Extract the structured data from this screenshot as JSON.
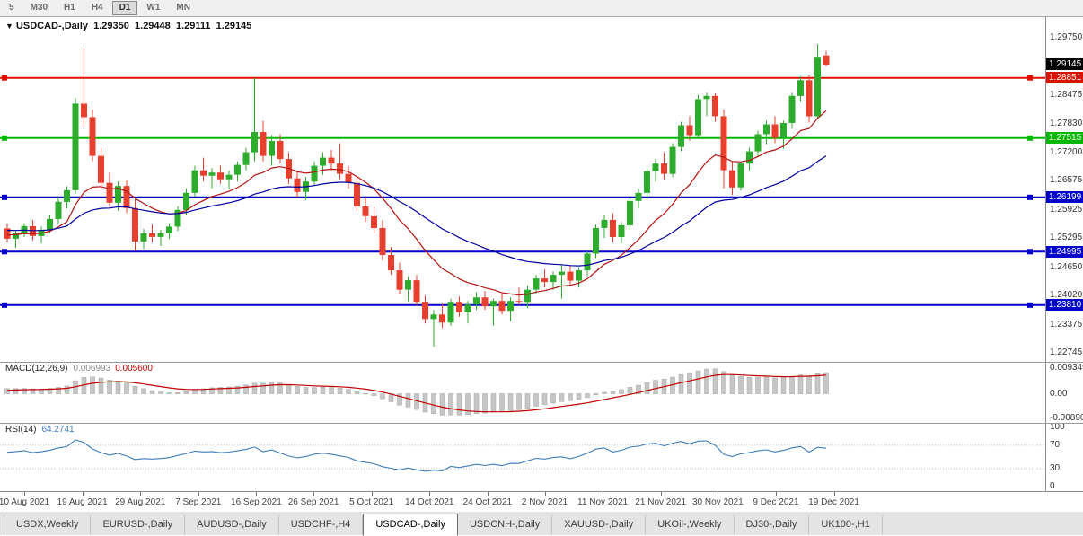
{
  "toolbar": {
    "timeframes": [
      {
        "label": "5",
        "active": false
      },
      {
        "label": "M30",
        "active": false
      },
      {
        "label": "H1",
        "active": false
      },
      {
        "label": "H4",
        "active": false
      },
      {
        "label": "D1",
        "active": true
      },
      {
        "label": "W1",
        "active": false
      },
      {
        "label": "MN",
        "active": false
      }
    ]
  },
  "chart": {
    "title": {
      "collapse_icon": "▼",
      "symbol": "USDCAD-,Daily",
      "open": "1.29350",
      "high": "1.29448",
      "low": "1.29111",
      "close": "1.29145"
    },
    "colors": {
      "bull": "#2cab2c",
      "bear": "#e8402f",
      "ma_fast": "#b31212",
      "ma_slow": "#0000a0",
      "macd_bar": "#c6c6c6",
      "macd_bar_border": "#a2a2a2",
      "macd_signal": "#c00000",
      "rsi_line": "#3f7cba",
      "current_label_bg": "#000000"
    }
  },
  "macd_panel": {
    "label": "MACD(12,26,9)",
    "main_value": "0.006993",
    "signal_value": "0.005600"
  },
  "rsi_panel": {
    "label": "RSI(14)",
    "value": "64.2741"
  },
  "chart_data": {
    "type": "candlestick",
    "symbol": "USDCAD-",
    "timeframe": "Daily",
    "current_price": 1.29145,
    "current_price_label": "1.29145",
    "price_axis_ticks": [
      "1.29750",
      "1.28475",
      "1.27830",
      "1.27200",
      "1.26575",
      "1.25925",
      "1.25295",
      "1.24650",
      "1.24020",
      "1.23375",
      "1.22745"
    ],
    "x_axis_labels": [
      {
        "label": "10 Aug 2021",
        "i": 3
      },
      {
        "label": "19 Aug 2021",
        "i": 9.8
      },
      {
        "label": "29 Aug 2021",
        "i": 16.6
      },
      {
        "label": "7 Sep 2021",
        "i": 23.4
      },
      {
        "label": "16 Sep 2021",
        "i": 30.2
      },
      {
        "label": "26 Sep 2021",
        "i": 36.9
      },
      {
        "label": "5 Oct 2021",
        "i": 43.7
      },
      {
        "label": "14 Oct 2021",
        "i": 50.5
      },
      {
        "label": "24 Oct 2021",
        "i": 57.3
      },
      {
        "label": "2 Nov 2021",
        "i": 64
      },
      {
        "label": "11 Nov 2021",
        "i": 70.8
      },
      {
        "label": "21 Nov 2021",
        "i": 77.6
      },
      {
        "label": "30 Nov 2021",
        "i": 84.3
      },
      {
        "label": "9 Dec 2021",
        "i": 91.1
      },
      {
        "label": "19 Dec 2021",
        "i": 97.9
      }
    ],
    "horizontal_lines": [
      {
        "price": 1.28851,
        "label": "1.28851",
        "color": "#dd1100"
      },
      {
        "price": 1.27515,
        "label": "1.27515",
        "color": "#00b800"
      },
      {
        "price": 1.26199,
        "label": "1.26199",
        "color": "#0202cc"
      },
      {
        "price": 1.24995,
        "label": "1.24995",
        "color": "#0202cc"
      },
      {
        "price": 1.2381,
        "label": "1.23810",
        "color": "#0202cc"
      }
    ],
    "moving_averages": [
      {
        "type": "fast",
        "period": 13
      },
      {
        "type": "slow",
        "period": 34
      }
    ],
    "macd": {
      "fast": 12,
      "slow": 26,
      "signal": 9,
      "axis_ticks": [
        {
          "label": "0.009345",
          "value": 0.009345
        },
        {
          "label": "0.00",
          "value": 0
        },
        {
          "label": "-0.008901",
          "value": -0.008901
        }
      ]
    },
    "rsi": {
      "period": 14,
      "levels": [
        70,
        30
      ],
      "axis_ticks": [
        {
          "label": "100",
          "value": 100
        },
        {
          "label": "70",
          "value": 70
        },
        {
          "label": "30",
          "value": 30
        },
        {
          "label": "0",
          "value": 0
        }
      ]
    },
    "ohlc": [
      [
        1.2551,
        1.2562,
        1.252,
        1.2528
      ],
      [
        1.2528,
        1.2545,
        1.2508,
        1.254
      ],
      [
        1.254,
        1.2562,
        1.2532,
        1.2556
      ],
      [
        1.2556,
        1.257,
        1.2525,
        1.2534
      ],
      [
        1.2534,
        1.2555,
        1.2518,
        1.2548
      ],
      [
        1.2548,
        1.258,
        1.254,
        1.2572
      ],
      [
        1.2572,
        1.262,
        1.256,
        1.261
      ],
      [
        1.261,
        1.2645,
        1.2595,
        1.2636
      ],
      [
        1.2636,
        1.284,
        1.2628,
        1.2828
      ],
      [
        1.2828,
        1.295,
        1.2775,
        1.2798
      ],
      [
        1.2798,
        1.2815,
        1.27,
        1.2712
      ],
      [
        1.2712,
        1.273,
        1.264,
        1.2652
      ],
      [
        1.2652,
        1.2675,
        1.2598,
        1.2608
      ],
      [
        1.2608,
        1.2655,
        1.259,
        1.2645
      ],
      [
        1.2645,
        1.2658,
        1.2585,
        1.2596
      ],
      [
        1.2596,
        1.2618,
        1.25,
        1.2522
      ],
      [
        1.2522,
        1.255,
        1.2505,
        1.254
      ],
      [
        1.254,
        1.256,
        1.252,
        1.2532
      ],
      [
        1.2532,
        1.2548,
        1.2512,
        1.254
      ],
      [
        1.254,
        1.2562,
        1.2528,
        1.2555
      ],
      [
        1.2555,
        1.26,
        1.2545,
        1.2592
      ],
      [
        1.2592,
        1.264,
        1.258,
        1.263
      ],
      [
        1.263,
        1.269,
        1.2622,
        1.268
      ],
      [
        1.268,
        1.2708,
        1.2655,
        1.2668
      ],
      [
        1.2668,
        1.2685,
        1.264,
        1.2675
      ],
      [
        1.2675,
        1.269,
        1.265,
        1.266
      ],
      [
        1.266,
        1.268,
        1.2638,
        1.267
      ],
      [
        1.267,
        1.27,
        1.2655,
        1.2692
      ],
      [
        1.2692,
        1.273,
        1.268,
        1.272
      ],
      [
        1.272,
        1.2885,
        1.27,
        1.2765
      ],
      [
        1.2765,
        1.279,
        1.27,
        1.2712
      ],
      [
        1.2712,
        1.2758,
        1.269,
        1.2745
      ],
      [
        1.2745,
        1.276,
        1.2695,
        1.2705
      ],
      [
        1.2705,
        1.272,
        1.265,
        1.2662
      ],
      [
        1.2662,
        1.268,
        1.262,
        1.2632
      ],
      [
        1.2632,
        1.2665,
        1.2615,
        1.2655
      ],
      [
        1.2655,
        1.27,
        1.2645,
        1.269
      ],
      [
        1.269,
        1.272,
        1.267,
        1.2708
      ],
      [
        1.2708,
        1.2725,
        1.268,
        1.2695
      ],
      [
        1.2695,
        1.274,
        1.266,
        1.2672
      ],
      [
        1.2672,
        1.269,
        1.264,
        1.2652
      ],
      [
        1.2652,
        1.2665,
        1.259,
        1.26
      ],
      [
        1.26,
        1.262,
        1.2565,
        1.2578
      ],
      [
        1.2578,
        1.2598,
        1.254,
        1.2552
      ],
      [
        1.2552,
        1.257,
        1.248,
        1.2492
      ],
      [
        1.2492,
        1.251,
        1.2448,
        1.2458
      ],
      [
        1.2458,
        1.2475,
        1.2405,
        1.2415
      ],
      [
        1.2415,
        1.2445,
        1.239,
        1.2436
      ],
      [
        1.2436,
        1.2448,
        1.238,
        1.2388
      ],
      [
        1.2388,
        1.2402,
        1.234,
        1.235
      ],
      [
        1.235,
        1.237,
        1.2288,
        1.236
      ],
      [
        1.236,
        1.2385,
        1.233,
        1.2342
      ],
      [
        1.2342,
        1.2395,
        1.2335,
        1.2388
      ],
      [
        1.2388,
        1.24,
        1.2355,
        1.2365
      ],
      [
        1.2365,
        1.239,
        1.234,
        1.2382
      ],
      [
        1.2382,
        1.241,
        1.237,
        1.2398
      ],
      [
        1.2398,
        1.2412,
        1.237,
        1.2378
      ],
      [
        1.2378,
        1.2395,
        1.2335,
        1.239
      ],
      [
        1.239,
        1.2405,
        1.236,
        1.2368
      ],
      [
        1.2368,
        1.2398,
        1.2345,
        1.239
      ],
      [
        1.239,
        1.242,
        1.238,
        1.2388
      ],
      [
        1.2388,
        1.2425,
        1.2375,
        1.2415
      ],
      [
        1.2415,
        1.2448,
        1.2405,
        1.244
      ],
      [
        1.244,
        1.246,
        1.242,
        1.2432
      ],
      [
        1.2432,
        1.2455,
        1.2415,
        1.2448
      ],
      [
        1.2448,
        1.247,
        1.2395,
        1.2455
      ],
      [
        1.2455,
        1.247,
        1.2425,
        1.2435
      ],
      [
        1.2435,
        1.2465,
        1.242,
        1.2458
      ],
      [
        1.2458,
        1.25,
        1.2445,
        1.2495
      ],
      [
        1.2495,
        1.256,
        1.2485,
        1.2552
      ],
      [
        1.2552,
        1.258,
        1.253,
        1.257
      ],
      [
        1.257,
        1.2585,
        1.252,
        1.2532
      ],
      [
        1.2532,
        1.2565,
        1.2518,
        1.2558
      ],
      [
        1.2558,
        1.262,
        1.2548,
        1.2612
      ],
      [
        1.2612,
        1.264,
        1.2595,
        1.263
      ],
      [
        1.263,
        1.2685,
        1.262,
        1.2678
      ],
      [
        1.2678,
        1.2705,
        1.2655,
        1.2695
      ],
      [
        1.2695,
        1.272,
        1.266,
        1.2672
      ],
      [
        1.2672,
        1.274,
        1.2665,
        1.2732
      ],
      [
        1.2732,
        1.2788,
        1.2722,
        1.278
      ],
      [
        1.278,
        1.28,
        1.2745,
        1.2758
      ],
      [
        1.2758,
        1.2847,
        1.275,
        1.2838
      ],
      [
        1.2838,
        1.2852,
        1.28,
        1.2845
      ],
      [
        1.2845,
        1.285,
        1.2788,
        1.28
      ],
      [
        1.28,
        1.2815,
        1.264,
        1.268
      ],
      [
        1.268,
        1.27,
        1.2625,
        1.2642
      ],
      [
        1.2642,
        1.27,
        1.2635,
        1.2695
      ],
      [
        1.2695,
        1.273,
        1.268,
        1.2722
      ],
      [
        1.2722,
        1.2768,
        1.271,
        1.276
      ],
      [
        1.276,
        1.279,
        1.2738,
        1.2782
      ],
      [
        1.2782,
        1.28,
        1.274,
        1.2752
      ],
      [
        1.2752,
        1.279,
        1.2728,
        1.2785
      ],
      [
        1.2785,
        1.2852,
        1.2772,
        1.2845
      ],
      [
        1.2845,
        1.2888,
        1.2832,
        1.288
      ],
      [
        1.288,
        1.2892,
        1.2786,
        1.28
      ],
      [
        1.28,
        1.296,
        1.2795,
        1.293
      ],
      [
        1.2935,
        1.29448,
        1.29111,
        1.29145
      ]
    ]
  },
  "tabs": [
    {
      "label": "USDX,Weekly",
      "active": false
    },
    {
      "label": "EURUSD-,Daily",
      "active": false
    },
    {
      "label": "AUDUSD-,Daily",
      "active": false
    },
    {
      "label": "USDCHF-,H4",
      "active": false
    },
    {
      "label": "USDCAD-,Daily",
      "active": true
    },
    {
      "label": "USDCNH-,Daily",
      "active": false
    },
    {
      "label": "XAUUSD-,Daily",
      "active": false
    },
    {
      "label": "UKOil-,Weekly",
      "active": false
    },
    {
      "label": "DJ30-,Daily",
      "active": false
    },
    {
      "label": "UK100-,H1",
      "active": false
    }
  ]
}
